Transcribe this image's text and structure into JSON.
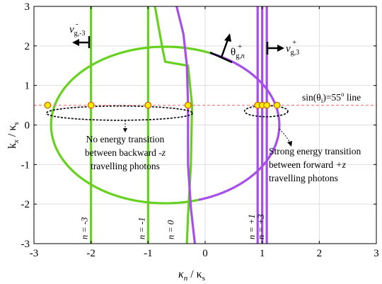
{
  "chart_data": {
    "type": "line",
    "title": "",
    "xlabel": {
      "main": "κ",
      "sub": "n",
      "mid": " / κ",
      "sub2": "s"
    },
    "ylabel": {
      "main": "k",
      "sub": "x",
      "mid": " / κ",
      "sub2": "s"
    },
    "xlim": [
      -3,
      3
    ],
    "ylim": [
      -3,
      3
    ],
    "x_ticks": [
      "-3",
      "-2",
      "-1",
      "0",
      "1",
      "2",
      "3"
    ],
    "y_ticks": [
      "3",
      "2",
      "1",
      "0",
      "-1",
      "-2",
      "-3"
    ],
    "x_tick_values": [
      -3,
      -2,
      -1,
      0,
      1,
      2,
      3
    ],
    "y_tick_values": [
      3,
      2,
      1,
      0,
      -1,
      -2,
      -3
    ],
    "grid": true,
    "colors": {
      "green": "#66d11e",
      "purple": "#a64dea",
      "marker_fill": "#ffee00",
      "marker_edge": "#c85a00",
      "dashed_line": "#f07a7a"
    },
    "ellipse": {
      "center": [
        -0.7,
        0.0
      ],
      "semi_axis_x": 2.0,
      "semi_axis_y": 1.98
    },
    "ellipse_arcs": [
      {
        "name": "left-arc-green",
        "color": "green",
        "from_deg": 66.5,
        "to_deg": 287
      },
      {
        "name": "top-right-arc-purple",
        "color": "purple",
        "from_deg": 17,
        "to_deg": 66.5
      },
      {
        "name": "bottom-right-arc-purple",
        "color": "purple",
        "from_deg": 287,
        "to_deg": 360
      },
      {
        "name": "right-tip-purple",
        "color": "purple",
        "from_deg": 0,
        "to_deg": 17
      }
    ],
    "series": [
      {
        "n_label": "n = -3",
        "color": "green",
        "points": [
          [
            -2,
            -3
          ],
          [
            -2,
            3
          ]
        ]
      },
      {
        "n_label": "n = -1",
        "color": "green",
        "points": [
          [
            -1,
            -3
          ],
          [
            -1,
            3
          ]
        ]
      },
      {
        "n_label": "",
        "color": "green",
        "points": [
          [
            -0.88,
            3
          ],
          [
            -0.75,
            1.95
          ],
          [
            -0.7,
            1.6
          ],
          [
            -0.3,
            1.5
          ],
          [
            -0.23,
            0.5
          ],
          [
            -0.25,
            -1.0
          ],
          [
            -0.3,
            -2.3
          ],
          [
            -0.32,
            -3
          ]
        ]
      },
      {
        "n_label": "n = 0",
        "color": "purple",
        "points": [
          [
            -0.5,
            3
          ],
          [
            -0.38,
            2.3
          ],
          [
            -0.32,
            1.5
          ],
          [
            -0.3,
            0.5
          ],
          [
            -0.3,
            -1.0
          ],
          [
            -0.25,
            -2.1
          ],
          [
            -0.18,
            -3
          ]
        ]
      },
      {
        "n_label": "n = +1",
        "color": "purple",
        "points": [
          [
            0.92,
            -3
          ],
          [
            0.92,
            3
          ]
        ]
      },
      {
        "n_label": "",
        "color": "purple",
        "points": [
          [
            1.0,
            -3
          ],
          [
            1.0,
            3
          ]
        ]
      },
      {
        "n_label": "n = +3",
        "color": "purple",
        "points": [
          [
            1.08,
            -3
          ],
          [
            1.08,
            3
          ]
        ]
      }
    ],
    "dashed_line": {
      "y": 0.5,
      "label_pre": "sin(θ",
      "label_sub": "i",
      "label_post": ")=55",
      "label_sup": "o",
      "label_tail": " line"
    },
    "intersection_points": [
      [
        -2.76,
        0.5
      ],
      [
        -2.0,
        0.5
      ],
      [
        -1.0,
        0.5
      ],
      [
        -0.3,
        0.5
      ],
      [
        0.92,
        0.5
      ],
      [
        1.0,
        0.5
      ],
      [
        1.08,
        0.5
      ],
      [
        1.26,
        0.5
      ]
    ],
    "small_ellipses": [
      {
        "name": "backward-ellipse",
        "center": [
          -1.5,
          0.3
        ],
        "rx": 1.28,
        "ry": 0.18
      },
      {
        "name": "forward-ellipse",
        "center": [
          1.07,
          0.35
        ],
        "rx": 0.38,
        "ry": 0.14
      }
    ],
    "annotations": {
      "backward_lines": [
        "No energy transition",
        "between backward ",
        "travelling photons"
      ],
      "backward_italic": "-z",
      "forward_lines": [
        "Strong energy transition",
        "between forward ",
        "travelling photons"
      ],
      "forward_italic": "+z",
      "vg_minus": {
        "v": "v",
        "sub": "g,-3",
        "sup": "-"
      },
      "vg_plus": {
        "v": "v",
        "sub": "g,3",
        "sup": "+"
      },
      "theta": {
        "t": "θ",
        "sub": "g,",
        "sub_italic": "n",
        "sup": "+"
      }
    }
  }
}
